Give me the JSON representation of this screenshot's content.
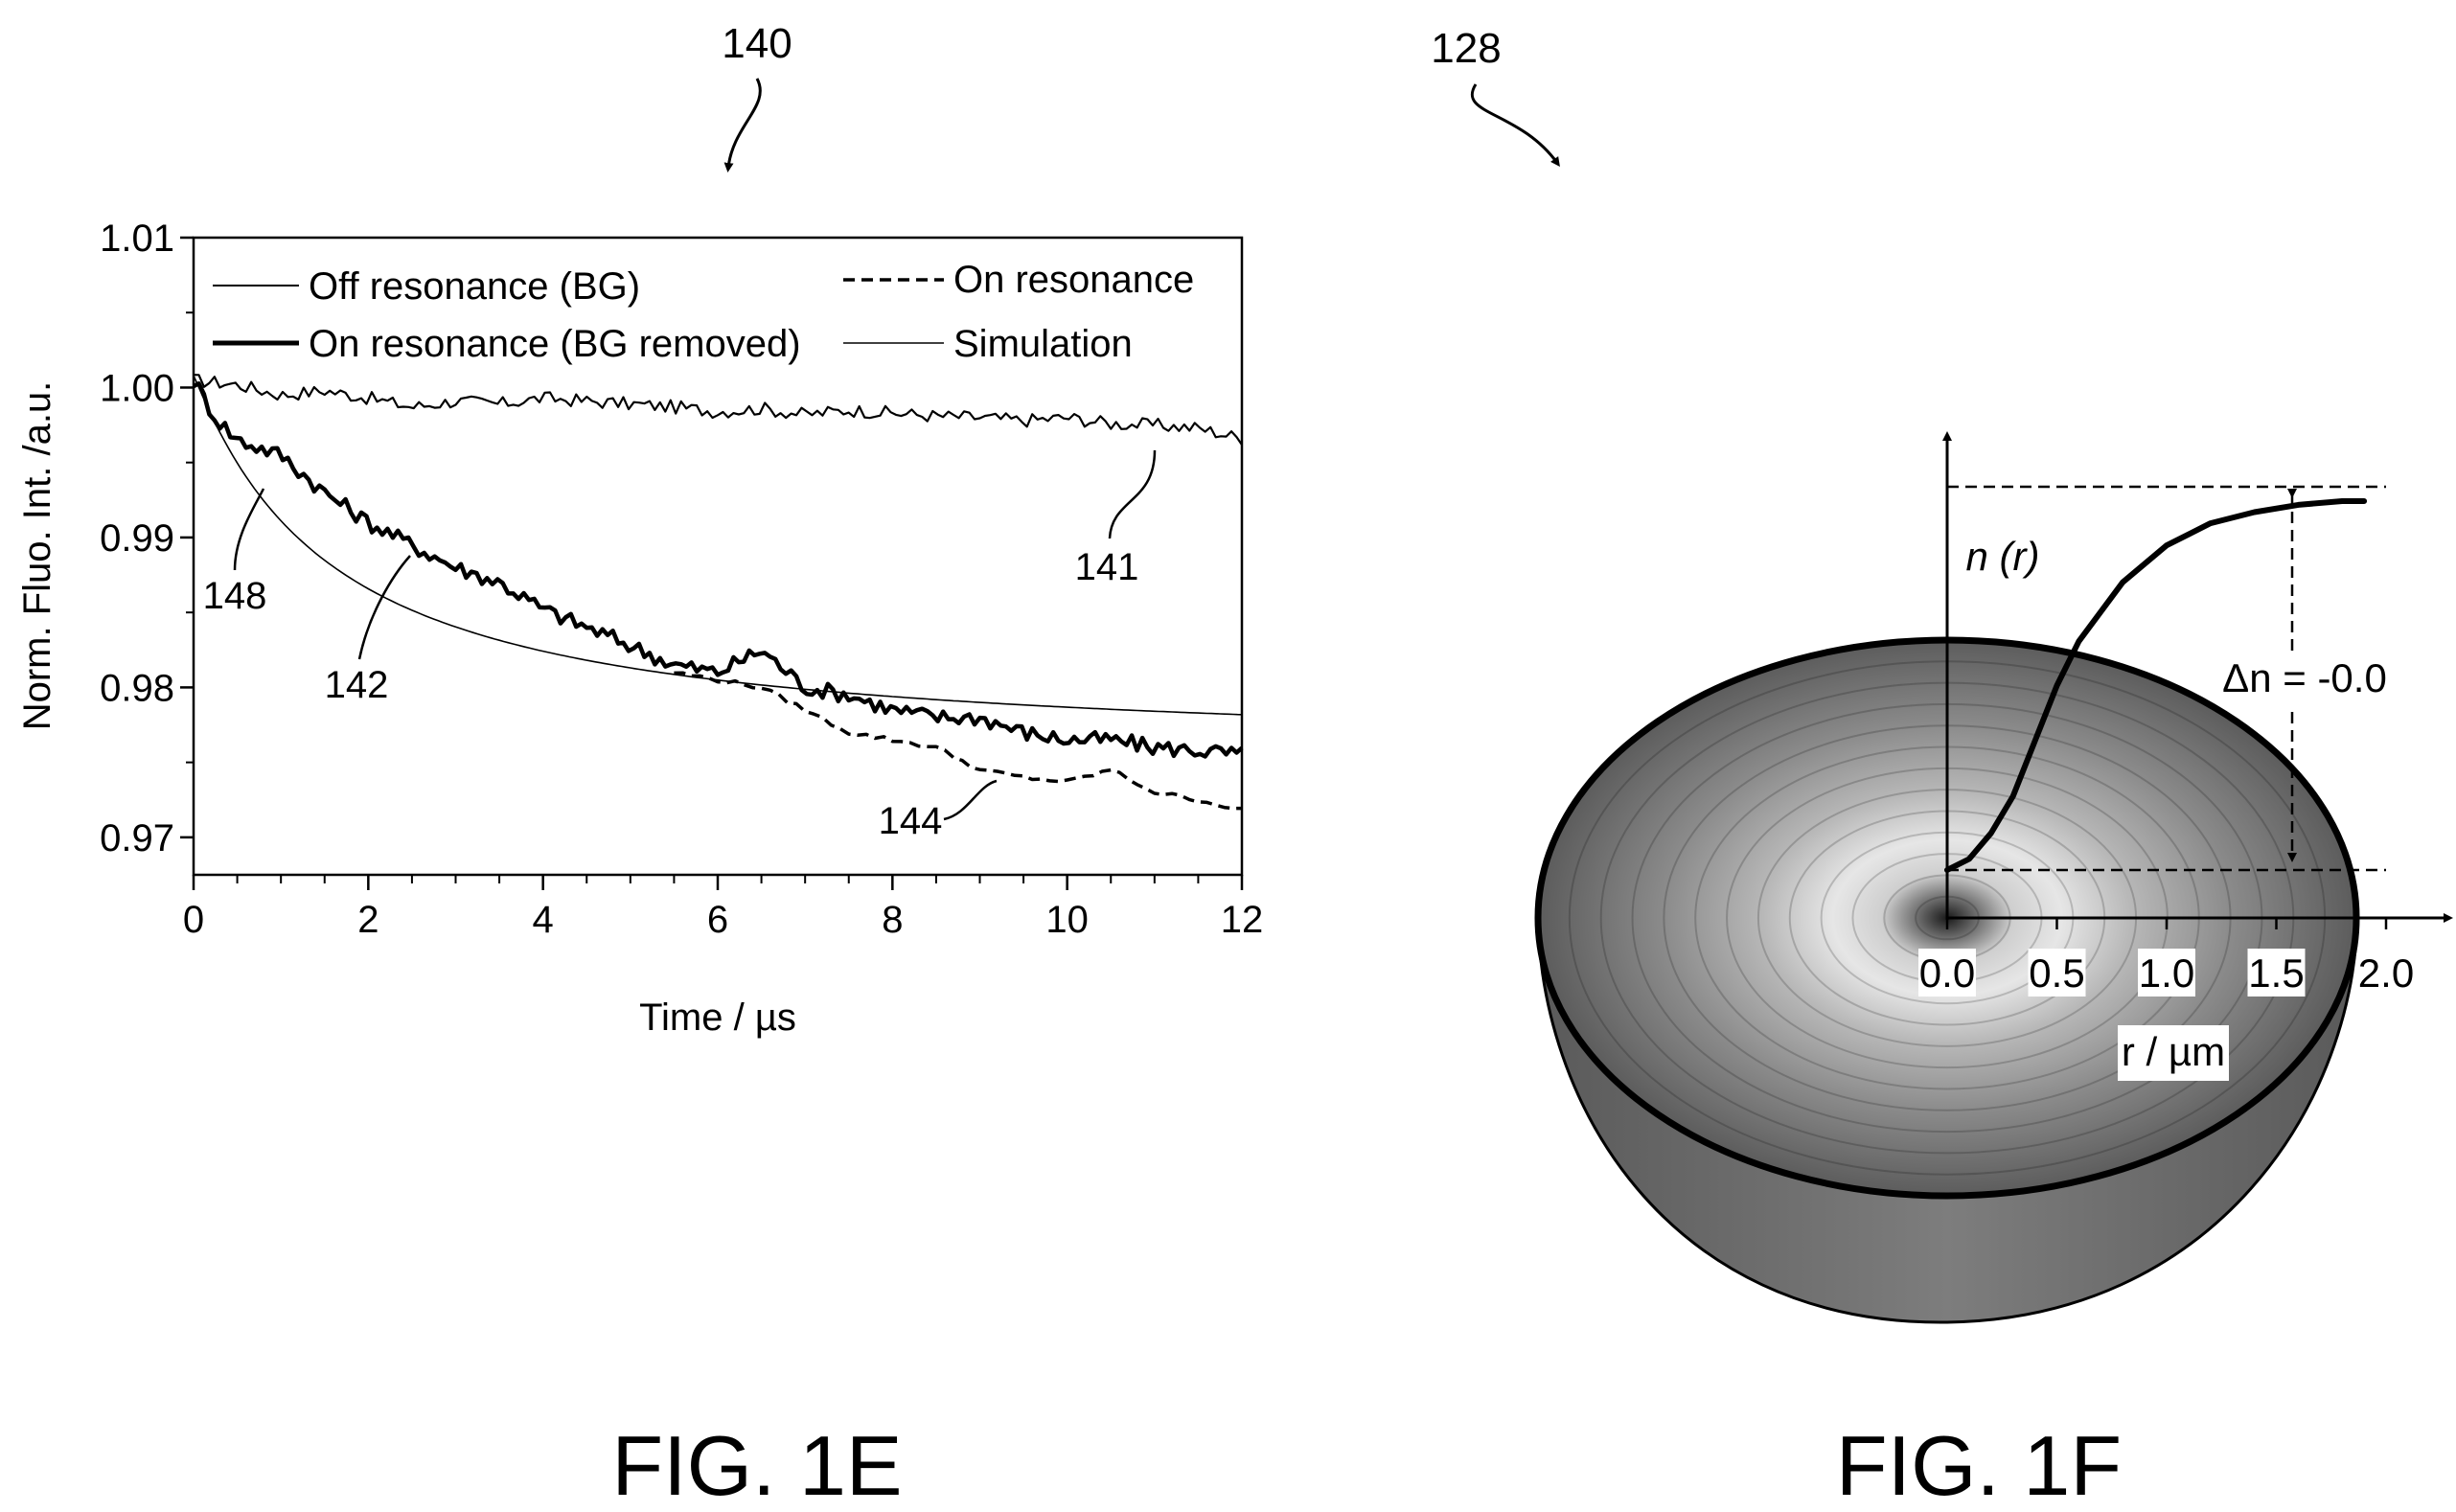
{
  "figure_e": {
    "ref_number": "140",
    "caption": "FIG. 1E",
    "annotations": [
      {
        "label": "141",
        "series": "Off resonance (BG)"
      },
      {
        "label": "142",
        "series": "On resonance (BG removed)"
      },
      {
        "label": "144",
        "series": "On resonance"
      },
      {
        "label": "148",
        "series": "Simulation"
      }
    ]
  },
  "figure_f": {
    "ref_number": "128",
    "caption": "FIG. 1F",
    "y_axis_label": "n (r)",
    "x_axis_label": "r / µm",
    "x_ticks": [
      "0.0",
      "0.5",
      "1.0",
      "1.5",
      "2.0"
    ],
    "delta_label": "Δn = -0.0"
  },
  "chart_data": [
    {
      "type": "line",
      "xlabel": "Time / µs",
      "ylabel": "Norm. Fluo. Int. /a.u.",
      "xlim": [
        0,
        12
      ],
      "ylim": [
        0.9675,
        1.01
      ],
      "xticks": [
        0,
        2,
        4,
        6,
        8,
        10,
        12
      ],
      "xtick_labels": [
        "0",
        "2",
        "4",
        "6",
        "8",
        "10",
        "12"
      ],
      "yticks": [
        0.97,
        0.98,
        0.99,
        1.0,
        1.01
      ],
      "ytick_labels": [
        "0.97",
        "0.98",
        "0.99",
        "1.00",
        "1.01"
      ],
      "legend_position": "top",
      "series": [
        {
          "name": "Off resonance (BG)",
          "style": "thin-solid",
          "x": [
            0,
            0.5,
            1,
            1.5,
            2,
            2.5,
            3,
            3.5,
            4,
            4.5,
            5,
            5.5,
            6,
            6.5,
            7,
            7.5,
            8,
            8.5,
            9,
            9.5,
            10,
            10.5,
            11,
            11.5,
            12
          ],
          "y": [
            1.0005,
            1.0002,
            0.9995,
            0.9998,
            0.9993,
            0.9987,
            0.9991,
            0.9989,
            0.9993,
            0.9991,
            0.9989,
            0.9987,
            0.9984,
            0.9986,
            0.9982,
            0.9985,
            0.9983,
            0.9981,
            0.998,
            0.9978,
            0.998,
            0.9976,
            0.9975,
            0.9973,
            0.9966
          ]
        },
        {
          "name": "On resonance (BG removed)",
          "style": "thick-solid",
          "x": [
            0,
            0.25,
            0.5,
            0.75,
            1,
            1.5,
            2,
            2.5,
            3,
            3.5,
            4,
            4.5,
            5,
            5.5,
            6,
            6.5,
            7,
            7.5,
            8,
            8.5,
            9,
            9.5,
            10,
            10.5,
            11,
            11.5,
            12
          ],
          "y": [
            1.0005,
            0.998,
            0.9965,
            0.996,
            0.9955,
            0.993,
            0.991,
            0.9895,
            0.988,
            0.987,
            0.9852,
            0.984,
            0.9828,
            0.9815,
            0.981,
            0.9825,
            0.98,
            0.9795,
            0.9785,
            0.978,
            0.978,
            0.977,
            0.9765,
            0.9765,
            0.976,
            0.9758,
            0.9755
          ]
        },
        {
          "name": "On resonance",
          "style": "dashed",
          "x": [
            5.5,
            6,
            6.5,
            7,
            7.5,
            8,
            8.5,
            9,
            9.5,
            10,
            10.5,
            11,
            11.5,
            12
          ],
          "y": [
            0.981,
            0.9805,
            0.98,
            0.9785,
            0.977,
            0.9765,
            0.976,
            0.9745,
            0.974,
            0.9737,
            0.9745,
            0.973,
            0.9725,
            0.9718
          ]
        },
        {
          "name": "Simulation",
          "style": "thin-smooth",
          "x": [
            0,
            0.5,
            1,
            1.5,
            2,
            2.5,
            3,
            4,
            5,
            6,
            7,
            8,
            9,
            10,
            11,
            12
          ],
          "y": [
            1.0008,
            0.9965,
            0.9935,
            0.9912,
            0.9893,
            0.9877,
            0.9864,
            0.9842,
            0.9826,
            0.9813,
            0.9803,
            0.9795,
            0.9788,
            0.9782,
            0.9777,
            0.9773
          ]
        }
      ]
    },
    {
      "type": "line",
      "x_label": "r / µm",
      "y_label": "n (r)",
      "xlim": [
        0,
        2.0
      ],
      "xticks": [
        0.0,
        0.5,
        1.0,
        1.5,
        2.0
      ],
      "series": [
        {
          "name": "n (r)",
          "x": [
            0,
            0.1,
            0.2,
            0.3,
            0.4,
            0.5,
            0.6,
            0.8,
            1.0,
            1.2,
            1.4,
            1.6,
            1.8,
            1.9
          ],
          "y": [
            0.0,
            0.03,
            0.1,
            0.2,
            0.35,
            0.5,
            0.62,
            0.78,
            0.88,
            0.94,
            0.97,
            0.99,
            1.0,
            1.0
          ]
        }
      ]
    }
  ]
}
